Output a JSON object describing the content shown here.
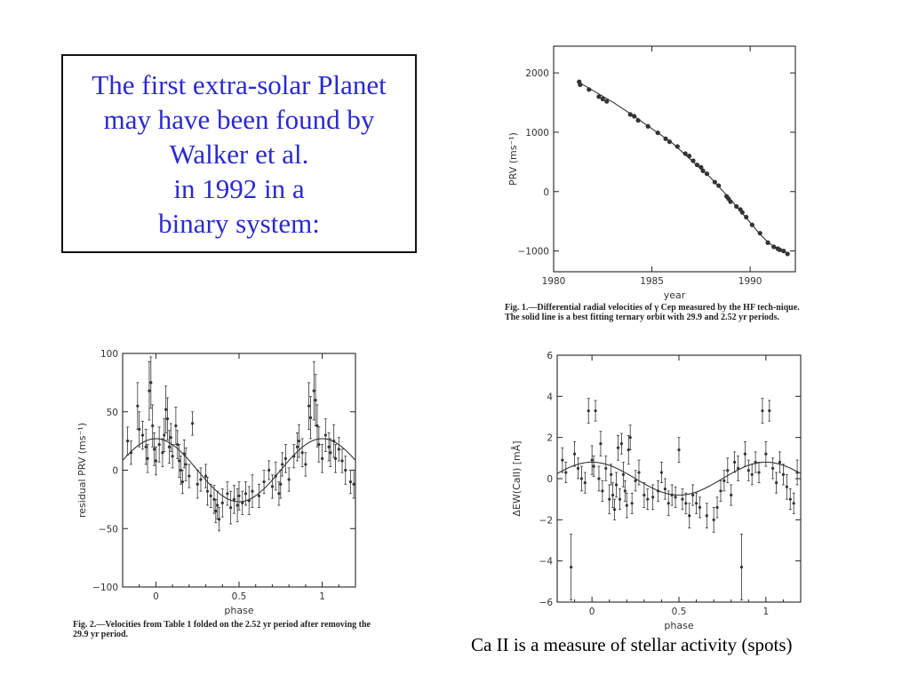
{
  "title_lines": [
    "The first extra-solar Planet",
    "may have been found by",
    "Walker et al.",
    "in 1992  in a",
    "binary system:"
  ],
  "fig1": {
    "caption": "Fig. 1.—Differential radial velocities of γ Cep measured by the HF tech-nique. The solid line is a best fitting ternary orbit with 29.9 and 2.52 yr periods."
  },
  "fig2": {
    "caption": "Fig. 2.—Velocities from Table 1 folded on the 2.52 yr period after removing the 29.9 yr period."
  },
  "bottom_caption": "Ca II is a measure of stellar activity (spots)",
  "colors": {
    "title_text": "#2a2ad2",
    "ink": "#222222"
  },
  "chart_data": [
    {
      "id": "prv-vs-year",
      "type": "scatter",
      "xlabel": "year",
      "ylabel": "PRV (ms⁻¹)",
      "xlim": [
        1980,
        1992.3
      ],
      "ylim": [
        -1350,
        2450
      ],
      "xticks": [
        1980,
        1985,
        1990
      ],
      "yticks": [
        2000,
        1000,
        0,
        -1000
      ],
      "series": [
        {
          "points": [
            [
              1981.3,
              1850
            ],
            [
              1981.35,
              1800
            ],
            [
              1981.8,
              1720
            ],
            [
              1982.3,
              1600
            ],
            [
              1982.5,
              1560
            ],
            [
              1982.7,
              1520
            ],
            [
              1983.9,
              1300
            ],
            [
              1984.1,
              1270
            ],
            [
              1984.3,
              1200
            ],
            [
              1984.8,
              1100
            ],
            [
              1985.3,
              990
            ],
            [
              1985.7,
              890
            ],
            [
              1985.9,
              840
            ],
            [
              1986.3,
              760
            ],
            [
              1986.7,
              640
            ],
            [
              1986.9,
              600
            ],
            [
              1987.1,
              520
            ],
            [
              1987.3,
              450
            ],
            [
              1987.5,
              410
            ],
            [
              1987.6,
              350
            ],
            [
              1987.8,
              300
            ],
            [
              1988.2,
              160
            ],
            [
              1988.4,
              100
            ],
            [
              1988.8,
              -80
            ],
            [
              1988.9,
              -120
            ],
            [
              1989.0,
              -170
            ],
            [
              1989.3,
              -250
            ],
            [
              1989.5,
              -300
            ],
            [
              1989.6,
              -350
            ],
            [
              1989.8,
              -430
            ],
            [
              1990.1,
              -560
            ],
            [
              1990.5,
              -700
            ],
            [
              1990.9,
              -860
            ],
            [
              1991.2,
              -930
            ],
            [
              1991.4,
              -960
            ],
            [
              1991.5,
              -980
            ],
            [
              1991.7,
              -1000
            ],
            [
              1991.9,
              -1050
            ]
          ]
        }
      ],
      "fit_line": [
        [
          1981.3,
          1840
        ],
        [
          1983,
          1510
        ],
        [
          1984,
          1290
        ],
        [
          1985,
          1060
        ],
        [
          1986,
          830
        ],
        [
          1987,
          530
        ],
        [
          1988,
          230
        ],
        [
          1989,
          -130
        ],
        [
          1990,
          -520
        ],
        [
          1990.5,
          -720
        ],
        [
          1991,
          -880
        ],
        [
          1991.6,
          -990
        ],
        [
          1992,
          -1050
        ]
      ]
    },
    {
      "id": "residual-prv-vs-phase",
      "type": "scatter",
      "xlabel": "phase",
      "ylabel": "residual PRV (ms⁻¹)",
      "xlim": [
        -0.2,
        1.2
      ],
      "ylim": [
        -100,
        100
      ],
      "xticks": [
        0,
        0.5,
        1
      ],
      "xtick_labels": [
        "0",
        "0.5",
        "1"
      ],
      "yticks": [
        100,
        50,
        0,
        -50,
        -100
      ],
      "fit_curve": {
        "amplitude": 27,
        "peak_phase": 0.0
      },
      "series": [
        {
          "points": [
            [
              -0.17,
              25,
              12
            ],
            [
              -0.15,
              15,
              10
            ],
            [
              -0.11,
              55,
              20
            ],
            [
              -0.1,
              35,
              15
            ],
            [
              -0.08,
              30,
              12
            ],
            [
              -0.06,
              20,
              15
            ],
            [
              -0.05,
              10,
              12
            ],
            [
              -0.04,
              68,
              25
            ],
            [
              -0.03,
              75,
              22
            ],
            [
              -0.02,
              38,
              18
            ],
            [
              -0.01,
              18,
              14
            ],
            [
              0.0,
              8,
              12
            ],
            [
              0.02,
              22,
              15
            ],
            [
              0.04,
              15,
              12
            ],
            [
              0.05,
              30,
              14
            ],
            [
              0.06,
              52,
              20
            ],
            [
              0.07,
              44,
              18
            ],
            [
              0.08,
              20,
              14
            ],
            [
              0.09,
              28,
              12
            ],
            [
              0.1,
              12,
              10
            ],
            [
              0.12,
              38,
              16
            ],
            [
              0.13,
              22,
              12
            ],
            [
              0.14,
              8,
              14
            ],
            [
              0.15,
              0,
              12
            ],
            [
              0.16,
              -10,
              10
            ],
            [
              0.17,
              14,
              12
            ],
            [
              0.18,
              5,
              14
            ],
            [
              0.2,
              -5,
              10
            ],
            [
              0.22,
              40,
              10
            ],
            [
              0.25,
              -12,
              12
            ],
            [
              0.27,
              -8,
              10
            ],
            [
              0.3,
              -5,
              10
            ],
            [
              0.31,
              -18,
              12
            ],
            [
              0.33,
              -22,
              10
            ],
            [
              0.35,
              -25,
              12
            ],
            [
              0.36,
              -35,
              10
            ],
            [
              0.37,
              -30,
              12
            ],
            [
              0.38,
              -42,
              10
            ],
            [
              0.4,
              -28,
              12
            ],
            [
              0.43,
              -20,
              10
            ],
            [
              0.45,
              -32,
              14
            ],
            [
              0.47,
              -25,
              12
            ],
            [
              0.49,
              -30,
              14
            ],
            [
              0.5,
              -22,
              12
            ],
            [
              0.52,
              -28,
              10
            ],
            [
              0.54,
              -20,
              10
            ],
            [
              0.56,
              -26,
              12
            ],
            [
              0.58,
              -18,
              14
            ],
            [
              0.62,
              -22,
              10
            ],
            [
              0.65,
              -10,
              10
            ],
            [
              0.68,
              0,
              8
            ],
            [
              0.7,
              -14,
              10
            ],
            [
              0.72,
              -5,
              12
            ],
            [
              0.74,
              -20,
              10
            ],
            [
              0.75,
              -12,
              12
            ],
            [
              0.76,
              5,
              10
            ],
            [
              0.78,
              10,
              12
            ],
            [
              0.8,
              -8,
              10
            ],
            [
              0.83,
              12,
              10
            ],
            [
              0.85,
              20,
              12
            ],
            [
              0.86,
              25,
              14
            ],
            [
              0.88,
              15,
              12
            ],
            [
              0.9,
              5,
              10
            ],
            [
              0.92,
              55,
              20
            ],
            [
              0.93,
              45,
              18
            ],
            [
              0.95,
              68,
              25
            ],
            [
              0.96,
              60,
              22
            ],
            [
              0.97,
              38,
              18
            ],
            [
              0.98,
              22,
              15
            ],
            [
              1.0,
              10,
              12
            ],
            [
              1.02,
              30,
              14
            ],
            [
              1.04,
              20,
              12
            ],
            [
              1.05,
              15,
              12
            ],
            [
              1.07,
              25,
              14
            ],
            [
              1.08,
              10,
              12
            ],
            [
              1.1,
              18,
              10
            ],
            [
              1.12,
              8,
              10
            ],
            [
              1.14,
              0,
              12
            ],
            [
              1.17,
              -10,
              10
            ],
            [
              1.19,
              -12,
              12
            ]
          ]
        }
      ]
    },
    {
      "id": "delta-ew-caii-vs-phase",
      "type": "scatter",
      "xlabel": "phase",
      "ylabel": "ΔEW(CaII) [mÅ]",
      "xlim": [
        -0.2,
        1.2
      ],
      "ylim": [
        -6,
        6
      ],
      "xticks": [
        0,
        0.5,
        1
      ],
      "xtick_labels": [
        "0",
        "0.5",
        "1"
      ],
      "yticks": [
        6,
        4,
        2,
        0,
        -2,
        -4,
        -6
      ],
      "fit_curve": {
        "amplitude": 0.8,
        "peak_phase": 0.0
      },
      "series": [
        {
          "points": [
            [
              -0.17,
              0.9,
              0.6
            ],
            [
              -0.15,
              0.3,
              0.5
            ],
            [
              -0.12,
              -4.3,
              1.6
            ],
            [
              -0.1,
              1.2,
              0.6
            ],
            [
              -0.08,
              0.5,
              0.5
            ],
            [
              -0.06,
              0.0,
              0.6
            ],
            [
              -0.04,
              -0.2,
              0.5
            ],
            [
              -0.02,
              3.3,
              0.6
            ],
            [
              0.0,
              0.9,
              0.7
            ],
            [
              0.01,
              0.6,
              0.5
            ],
            [
              0.02,
              3.3,
              0.5
            ],
            [
              0.04,
              0.0,
              0.6
            ],
            [
              0.05,
              1.7,
              0.6
            ],
            [
              0.06,
              -0.6,
              0.5
            ],
            [
              0.08,
              0.5,
              0.6
            ],
            [
              0.1,
              -1.0,
              0.7
            ],
            [
              0.11,
              0.2,
              0.5
            ],
            [
              0.12,
              -0.8,
              0.6
            ],
            [
              0.13,
              -1.5,
              0.5
            ],
            [
              0.14,
              -0.3,
              0.6
            ],
            [
              0.15,
              1.5,
              0.6
            ],
            [
              0.16,
              -1.0,
              0.5
            ],
            [
              0.17,
              1.7,
              0.5
            ],
            [
              0.18,
              0.2,
              0.6
            ],
            [
              0.19,
              -0.6,
              0.5
            ],
            [
              0.2,
              -1.3,
              0.6
            ],
            [
              0.21,
              1.4,
              0.7
            ],
            [
              0.22,
              2.0,
              0.6
            ],
            [
              0.23,
              -1.2,
              0.5
            ],
            [
              0.25,
              -0.1,
              0.5
            ],
            [
              0.27,
              0.3,
              0.6
            ],
            [
              0.3,
              -0.8,
              0.6
            ],
            [
              0.32,
              -1.0,
              0.5
            ],
            [
              0.35,
              -0.9,
              0.6
            ],
            [
              0.38,
              -0.6,
              0.5
            ],
            [
              0.4,
              0.3,
              0.5
            ],
            [
              0.42,
              -0.5,
              0.5
            ],
            [
              0.44,
              -1.2,
              0.6
            ],
            [
              0.46,
              -0.8,
              0.5
            ],
            [
              0.48,
              -0.9,
              0.5
            ],
            [
              0.5,
              1.4,
              0.6
            ],
            [
              0.52,
              -1.0,
              0.5
            ],
            [
              0.54,
              -1.2,
              0.5
            ],
            [
              0.56,
              -1.8,
              0.6
            ],
            [
              0.58,
              -0.8,
              0.5
            ],
            [
              0.6,
              -1.2,
              0.5
            ],
            [
              0.62,
              -1.4,
              0.5
            ],
            [
              0.66,
              -1.8,
              0.6
            ],
            [
              0.7,
              -2.0,
              0.6
            ],
            [
              0.72,
              -1.4,
              0.5
            ],
            [
              0.74,
              -0.6,
              0.5
            ],
            [
              0.76,
              -0.1,
              0.5
            ],
            [
              0.78,
              0.4,
              0.6
            ],
            [
              0.8,
              -0.8,
              0.5
            ],
            [
              0.82,
              0.8,
              0.5
            ],
            [
              0.84,
              0.5,
              0.6
            ],
            [
              0.86,
              -4.3,
              1.6
            ],
            [
              0.88,
              1.2,
              0.6
            ],
            [
              0.9,
              0.4,
              0.5
            ],
            [
              0.92,
              0.2,
              0.5
            ],
            [
              0.94,
              0.8,
              0.5
            ],
            [
              0.96,
              0.3,
              0.5
            ],
            [
              0.98,
              3.3,
              0.6
            ],
            [
              1.0,
              1.2,
              0.6
            ],
            [
              1.02,
              3.3,
              0.5
            ],
            [
              1.04,
              0.5,
              0.5
            ],
            [
              1.06,
              -0.2,
              0.5
            ],
            [
              1.08,
              0.8,
              0.5
            ],
            [
              1.1,
              0.2,
              0.5
            ],
            [
              1.12,
              -0.4,
              0.6
            ],
            [
              1.14,
              -1.0,
              0.5
            ],
            [
              1.16,
              -1.2,
              0.5
            ],
            [
              1.18,
              0.3,
              0.6
            ]
          ]
        }
      ]
    }
  ]
}
